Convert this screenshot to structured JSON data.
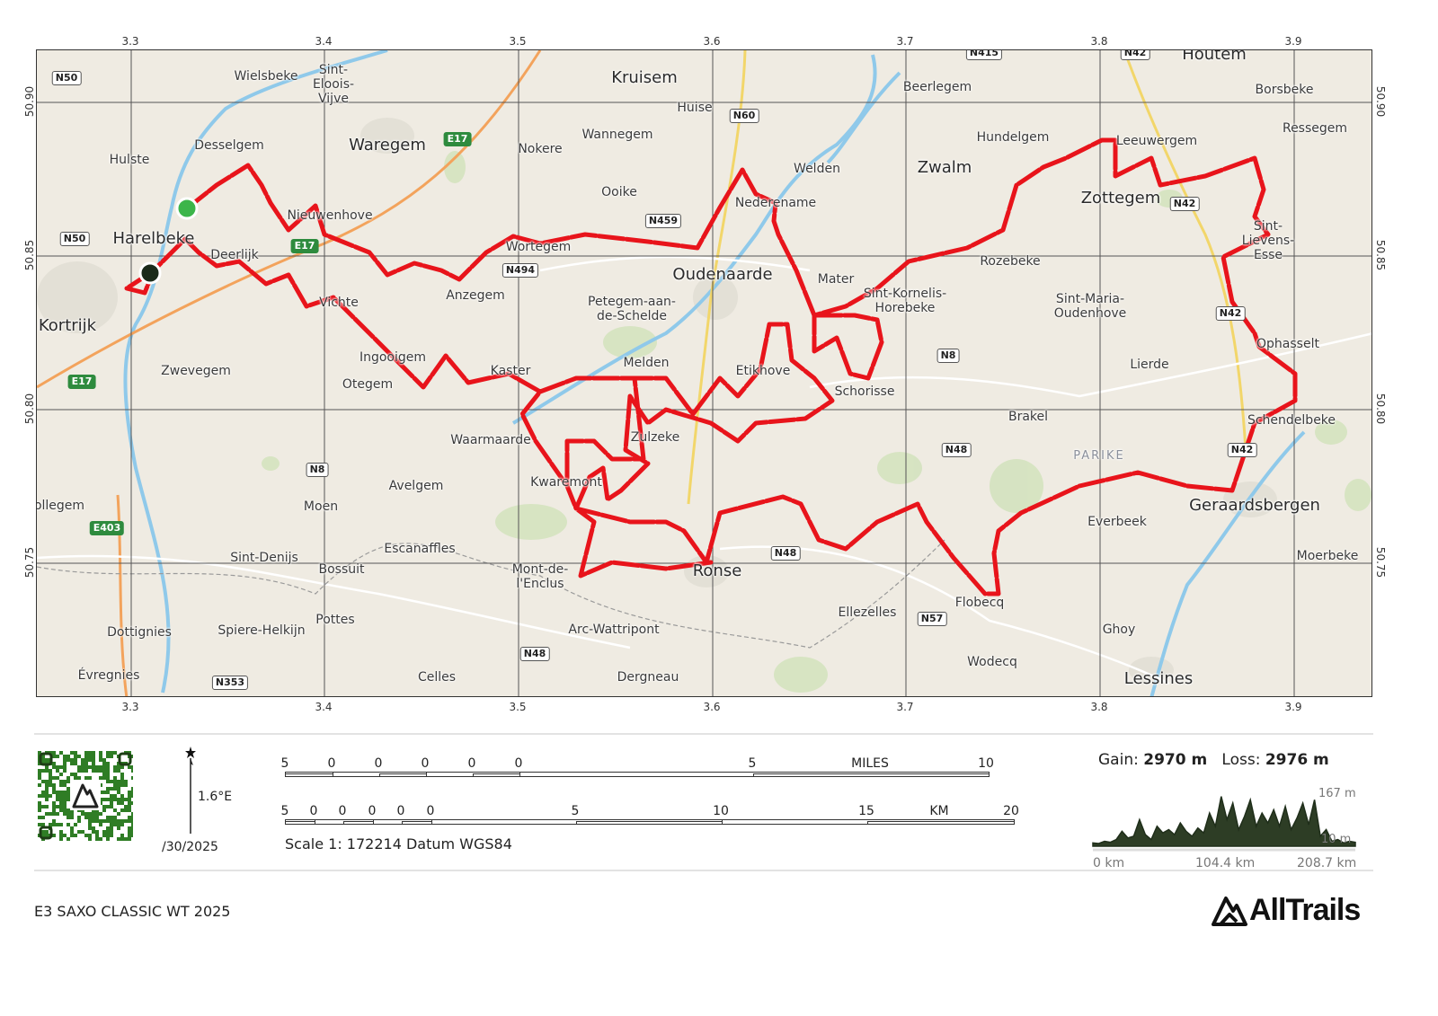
{
  "map": {
    "lon_ticks": [
      "3.3",
      "3.4",
      "3.5",
      "3.6",
      "3.7",
      "3.8",
      "3.9"
    ],
    "lat_ticks": [
      "50.90",
      "50.85",
      "50.80",
      "50.75"
    ],
    "route_color": "#e8141b",
    "start_marker_color": "#3cb54a",
    "end_marker_color": "#1a2a1a",
    "places": [
      "Wielsbeke",
      "Sint-\nEloois-\nVijve",
      "Kruisem",
      "Huise",
      "Wannegem",
      "Nokere",
      "Waregem",
      "Desselgem",
      "Hulste",
      "Ooike",
      "Nederename",
      "Welden",
      "Zwalm",
      "Hundelgem",
      "Beerlegem",
      "Houtem",
      "Borsbeke",
      "Ressegem",
      "Leeuwergem",
      "Zottegem",
      "Sint-\nLievens-\nEsse",
      "Nieuwenhove",
      "Harelbeke",
      "Deerlijk",
      "Wortegem",
      "Oudenaarde",
      "Rozebeke",
      "Mater",
      "Sint-Kornelis-\nHorebeke",
      "Sint-Maria-\nOudenhove",
      "Anzegem",
      "Petegem-aan-\nde-Schelde",
      "Vichte",
      "Kortrijk",
      "Ophasselt",
      "Zwevegem",
      "Ingooigem",
      "Otegem",
      "Kaster",
      "Melden",
      "Etikhove",
      "Schorisse",
      "Lierde",
      "Brakel",
      "Schendelbeke",
      "Waarmaarde",
      "Zulzeke",
      "PARIKE",
      "Kwaremont",
      "Avelgem",
      "Moen",
      "Geraardsbergen",
      "Everbeek",
      "ollegem",
      "Escanaffles",
      "Sint-Denijs",
      "Bossuit",
      "Mont-de-\nl'Enclus",
      "Ronse",
      "Moerbeke",
      "Flobecq",
      "Ellezelles",
      "Pottes",
      "Dottignies",
      "Spiere-Helkijn",
      "Arc-Wattripont",
      "Ghoy",
      "Wodecq",
      "Évregnies",
      "Celles",
      "Dergneau",
      "Lessines"
    ],
    "roads": [
      "N50",
      "N50",
      "E17",
      "E17",
      "E17",
      "E403",
      "N60",
      "N459",
      "N494",
      "N8",
      "N48",
      "N42",
      "N42",
      "N42",
      "N8",
      "N48",
      "N57",
      "N48",
      "N353",
      "N415",
      "N42"
    ]
  },
  "legend": {
    "declination": "1.6°E",
    "date": "/30/2025",
    "miles_labels": [
      "5",
      "0",
      "0",
      "0",
      "0",
      "0",
      "5",
      "MILES",
      "10"
    ],
    "km_labels": [
      "5",
      "0",
      "0",
      "0",
      "0",
      "0",
      "5",
      "10",
      "15",
      "KM",
      "20"
    ],
    "scale_text": "Scale 1: 172214 Datum WGS84"
  },
  "elevation": {
    "gain_label": "Gain:",
    "gain_value": "2970 m",
    "loss_label": "Loss:",
    "loss_value": "2976 m",
    "max_label": "167 m",
    "min_label": "10 m",
    "x_labels": [
      "0 km",
      "104.4 km",
      "208.7 km"
    ],
    "line_color": "#1f2e1a",
    "chart_data": {
      "type": "area",
      "xlabel": "",
      "ylabel": "",
      "xlim": [
        0,
        208.7
      ],
      "ylim": [
        10,
        167
      ],
      "values": [
        20,
        18,
        25,
        22,
        30,
        55,
        35,
        40,
        90,
        45,
        30,
        70,
        50,
        60,
        45,
        80,
        55,
        40,
        65,
        50,
        110,
        70,
        160,
        90,
        140,
        60,
        100,
        150,
        70,
        110,
        80,
        120,
        70,
        130,
        60,
        95,
        140,
        75,
        150,
        40,
        60,
        25,
        30,
        20,
        25,
        22
      ]
    }
  },
  "footer": {
    "title": "E3 SAXO CLASSIC WT 2025",
    "brand": "AllTrails"
  }
}
